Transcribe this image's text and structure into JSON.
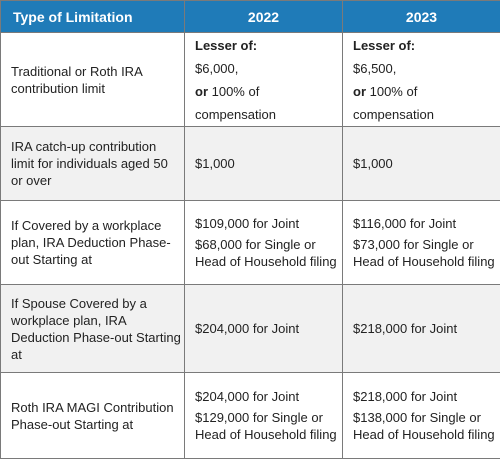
{
  "headers": [
    "Type of Limitation",
    "2022",
    "2023"
  ],
  "rows": [
    {
      "label": "Traditional or Roth IRA contribution limit",
      "y2022": {
        "lesser": "Lesser of:",
        "amount": "$6,000,",
        "or": "or",
        "rest": " 100% of",
        "comp": "compensation"
      },
      "y2023": {
        "lesser": "Lesser of:",
        "amount": "$6,500,",
        "or": "or",
        "rest": " 100% of",
        "comp": "compensation"
      }
    },
    {
      "label": "IRA catch-up contribution limit for individuals aged 50 or over",
      "y2022": "$1,000",
      "y2023": "$1,000"
    },
    {
      "label": "If Covered by a workplace plan, IRA Deduction Phase-out Starting at",
      "y2022": {
        "joint": "$109,000 for Joint",
        "single": "$68,000 for Single or Head of Household filing"
      },
      "y2023": {
        "joint": "$116,000 for Joint",
        "single": "$73,000 for Single or Head of Household filing"
      }
    },
    {
      "label": "If Spouse Covered by a workplace plan, IRA Deduction Phase-out Starting at",
      "y2022": "$204,000 for Joint",
      "y2023": "$218,000 for Joint"
    },
    {
      "label": "Roth IRA MAGI Contribution Phase-out Starting at",
      "y2022": {
        "joint": "$204,000 for Joint",
        "single": "$129,000 for Single or Head of Household filing"
      },
      "y2023": {
        "joint": "$218,000 for Joint",
        "single": "$138,000 for Single or Head of Household filing"
      }
    }
  ]
}
